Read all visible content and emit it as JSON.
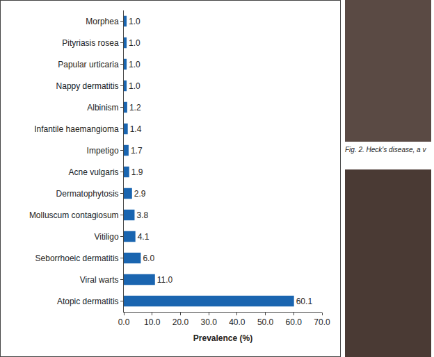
{
  "chart_data": {
    "type": "bar",
    "orientation": "horizontal",
    "xlabel": "Prevalence (%)",
    "categories": [
      "Morphea",
      "Pityriasis rosea",
      "Papular urticaria",
      "Nappy dermatitis",
      "Albinism",
      "Infantile haemangioma",
      "Impetigo",
      "Acne vulgaris",
      "Dermatophytosis",
      "Molluscum contagiosum",
      "Vitiligo",
      "Seborrhoeic dermatitis",
      "Viral warts",
      "Atopic dermatitis"
    ],
    "values": [
      1.0,
      1.0,
      1.0,
      1.0,
      1.2,
      1.4,
      1.7,
      1.9,
      2.9,
      3.8,
      4.1,
      6.0,
      11.0,
      60.1
    ],
    "value_labels": [
      "1.0",
      "1.0",
      "1.0",
      "1.0",
      "1.2",
      "1.4",
      "1.7",
      "1.9",
      "2.9",
      "3.8",
      "4.1",
      "6.0",
      "11.0",
      "60.1"
    ],
    "data_labels": true,
    "color": "#1a65b0",
    "xlim": [
      0,
      70
    ],
    "xticks": [
      {
        "value": 0,
        "label": "0.0"
      },
      {
        "value": 10,
        "label": "10.0"
      },
      {
        "value": 20,
        "label": "20.0"
      },
      {
        "value": 30,
        "label": "30.0"
      },
      {
        "value": 40,
        "label": "40.0"
      },
      {
        "value": 50,
        "label": "50.0"
      },
      {
        "value": 60,
        "label": "60.0"
      },
      {
        "value": 70,
        "label": "70.0"
      }
    ],
    "grid": false,
    "annotations": [
      "Fig. 2. Heck's disease, a v"
    ]
  }
}
